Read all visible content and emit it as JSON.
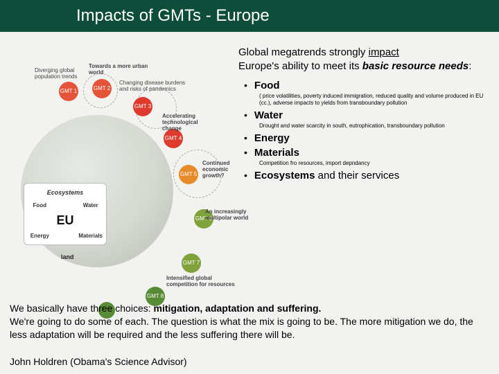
{
  "title_bar": {
    "text": "Impacts of GMTs - Europe",
    "bg_color": "#0d4d3a"
  },
  "lead": {
    "prefix": "Global megatrends strongly ",
    "underlined": "impact",
    "line2_plain": "Europe's ability to meet its ",
    "line2_bolditalic": "basic resource needs",
    "suffix": ":"
  },
  "bullets": [
    {
      "title": "Food",
      "sub": "( price volatilities, poverty induced immigration, reduced quality and volume produced in EU (cc.), adverse impacts to yields from transboundary pollution"
    },
    {
      "title": "Water",
      "sub": "Drought and water scarcity in south, eutrophication, transboundary pollution"
    },
    {
      "title": "Energy"
    },
    {
      "title": "Materials",
      "sub": "Competition fro resources, import depndancy"
    },
    {
      "title": "Ecosystems",
      "rest": " and their services"
    }
  ],
  "quote": {
    "line1_plain": "We basically have three choices: ",
    "line1_bold": "mitigation, adaptation and suffering.",
    "line2": "We're going to do some of each. The question is what the mix is going to be. The more mitigation we do, the less adaptation will be required and the less suffering there will be.",
    "attribution": "John Holdren (Obama's Science Advisor)"
  },
  "diagram": {
    "eu_box": {
      "eco": "Ecosystems",
      "food": "Food",
      "water": "Water",
      "eu": "EU",
      "energy": "Energy",
      "materials": "Materials"
    },
    "land_label": "land",
    "dots": [
      {
        "id": "d1",
        "label": "GMT 1",
        "caption": "Diverging global population trends"
      },
      {
        "id": "d2",
        "label": "GMT 2",
        "caption": "Towards a more urban world"
      },
      {
        "id": "d3",
        "label": "GMT 3",
        "caption": "Changing disease burdens and risks of pandemics"
      },
      {
        "id": "d4",
        "label": "GMT 4",
        "caption": "Accelerating technological change"
      },
      {
        "id": "d5",
        "label": "GMT 5",
        "caption": "Continued economic growth?"
      },
      {
        "id": "d6",
        "label": "GMT 6",
        "caption": "An increasingly multipolar world"
      },
      {
        "id": "d7",
        "label": "GMT 7",
        "caption": "Intensified global competition for resources"
      },
      {
        "id": "d8",
        "label": "GMT 8",
        "caption": ""
      },
      {
        "id": "d9",
        "label": "",
        "caption": ""
      }
    ]
  }
}
